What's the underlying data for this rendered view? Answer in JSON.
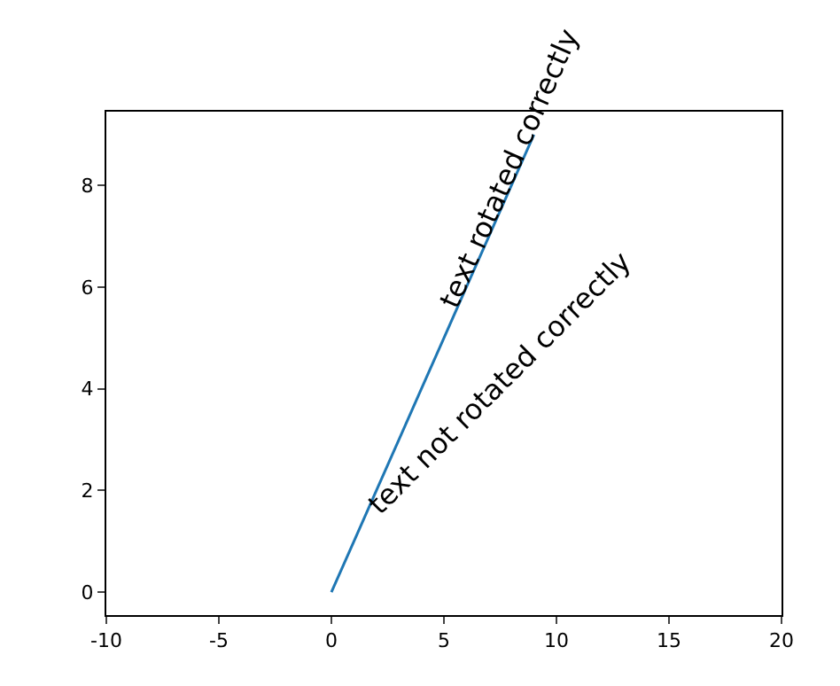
{
  "chart_data": {
    "type": "line",
    "x": [
      0,
      1,
      2,
      3,
      4,
      5,
      6,
      7,
      8,
      9
    ],
    "series": [
      {
        "color": "#1f77b4",
        "values": [
          0,
          1,
          2,
          3,
          4,
          5,
          6,
          7,
          8,
          9
        ]
      }
    ],
    "xlim": [
      -10,
      20
    ],
    "xticks": [
      -10,
      -5,
      0,
      5,
      10,
      15,
      20
    ],
    "ylim": [
      -0.45,
      9.45
    ],
    "yticks": [
      0,
      2,
      4,
      6,
      8
    ],
    "annotations": [
      {
        "text": "text not rotated correctly",
        "x": 1,
        "y": 1
      },
      {
        "text": "text rotated correctly",
        "x": 5,
        "y": 5
      }
    ],
    "marker": "none",
    "line_style": "solid"
  }
}
